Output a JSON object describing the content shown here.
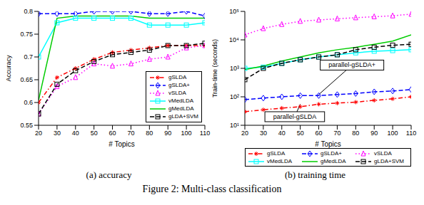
{
  "caption": "Figure 2: Multi-class classification",
  "chart_data": [
    {
      "type": "line",
      "caption": "(a) accuracy",
      "x_label": "# Topics",
      "y_label": "Accuracy",
      "x": [
        20,
        30,
        40,
        50,
        60,
        70,
        80,
        90,
        100,
        110
      ],
      "xlim": [
        20,
        110
      ],
      "xticks": [
        20,
        30,
        40,
        50,
        60,
        70,
        80,
        90,
        100,
        110
      ],
      "ylim": [
        0.55,
        0.8
      ],
      "yticks": [
        0.55,
        0.6,
        0.65,
        0.7,
        0.75,
        0.8
      ],
      "legend": "lower right",
      "series": [
        {
          "name": "gSLDA",
          "color": "#ff0000",
          "marker": "star",
          "line_style": "dashdot",
          "values": [
            0.6,
            0.655,
            0.675,
            0.695,
            0.71,
            0.715,
            0.72,
            0.725,
            0.725,
            0.725
          ]
        },
        {
          "name": "gSLDA+",
          "color": "#0000ff",
          "marker": "diamond",
          "line_style": "dashed",
          "values": [
            0.795,
            0.795,
            0.795,
            0.8,
            0.8,
            0.8,
            0.795,
            0.795,
            0.8,
            0.79
          ]
        },
        {
          "name": "vSLDA",
          "color": "#ff00ff",
          "marker": "triangle",
          "line_style": "dotted",
          "values": [
            0.575,
            0.635,
            0.655,
            0.685,
            0.68,
            0.685,
            0.695,
            0.7,
            0.72,
            0.725
          ]
        },
        {
          "name": "vMedLDA",
          "color": "#00ffff",
          "marker": "square",
          "line_style": "solid",
          "values": [
            0.7,
            0.775,
            0.785,
            0.785,
            0.785,
            0.785,
            0.77,
            0.77,
            0.77,
            0.775
          ]
        },
        {
          "name": "gMedLDA",
          "color": "#00cc00",
          "marker": "none",
          "line_style": "solid",
          "values": [
            0.605,
            0.785,
            0.79,
            0.79,
            0.79,
            0.79,
            0.785,
            0.785,
            0.785,
            0.785
          ]
        },
        {
          "name": "gLDA+SVM",
          "color": "#000000",
          "marker": "square",
          "line_style": "dashed",
          "values": [
            0.575,
            0.64,
            0.67,
            0.69,
            0.705,
            0.71,
            0.715,
            0.725,
            0.725,
            0.73
          ]
        }
      ]
    },
    {
      "type": "line",
      "caption": "(b) training time",
      "x_label": "# Topics",
      "y_label": "Train-time (seconds)",
      "log": "y",
      "x": [
        20,
        30,
        40,
        50,
        60,
        70,
        80,
        90,
        100,
        110
      ],
      "xlim": [
        20,
        110
      ],
      "xticks": [
        20,
        30,
        40,
        50,
        60,
        70,
        80,
        90,
        100,
        110
      ],
      "ylim": [
        10,
        100000
      ],
      "yticks": [
        {
          "value": 10,
          "label": "10¹"
        },
        {
          "value": 100,
          "label": "10²"
        },
        {
          "value": 1000,
          "label": "10³"
        },
        {
          "value": 10000,
          "label": "10⁴"
        },
        {
          "value": 100000,
          "label": "10⁵"
        }
      ],
      "legend": "bottom",
      "annotations": [
        {
          "text": "parallel-gSLDA+",
          "x": 78,
          "y": 1300,
          "target_x": 60,
          "target_y": 120
        },
        {
          "text": "parallel-gSLDA",
          "x": 47,
          "y": 20,
          "target_x": 50,
          "target_y": 55
        }
      ],
      "series": [
        {
          "name": "gSLDA",
          "color": "#ff0000",
          "marker": "star",
          "line_style": "dashdot",
          "values": [
            30,
            35,
            40,
            45,
            55,
            60,
            65,
            75,
            85,
            100
          ]
        },
        {
          "name": "gSLDA+",
          "color": "#0000ff",
          "marker": "diamond",
          "line_style": "dashed",
          "values": [
            80,
            90,
            100,
            110,
            110,
            120,
            130,
            150,
            160,
            180
          ]
        },
        {
          "name": "vSLDA",
          "color": "#ff00ff",
          "marker": "triangle",
          "line_style": "dotted",
          "values": [
            15000,
            25000,
            35000,
            45000,
            50000,
            55000,
            60000,
            65000,
            70000,
            80000
          ]
        },
        {
          "name": "vMedLDA",
          "color": "#00ffff",
          "marker": "square",
          "line_style": "solid",
          "values": [
            1000,
            1100,
            1500,
            2000,
            2500,
            3000,
            3500,
            4000,
            4200,
            4500
          ]
        },
        {
          "name": "gMedLDA",
          "color": "#00cc00",
          "marker": "none",
          "line_style": "solid",
          "values": [
            900,
            1200,
            1800,
            2500,
            3500,
            4500,
            5500,
            7000,
            9000,
            15000
          ]
        },
        {
          "name": "gLDA+SVM",
          "color": "#000000",
          "marker": "square",
          "line_style": "dashed",
          "values": [
            400,
            1000,
            1500,
            2000,
            2500,
            3000,
            4500,
            5500,
            6500,
            7000
          ]
        }
      ]
    }
  ]
}
